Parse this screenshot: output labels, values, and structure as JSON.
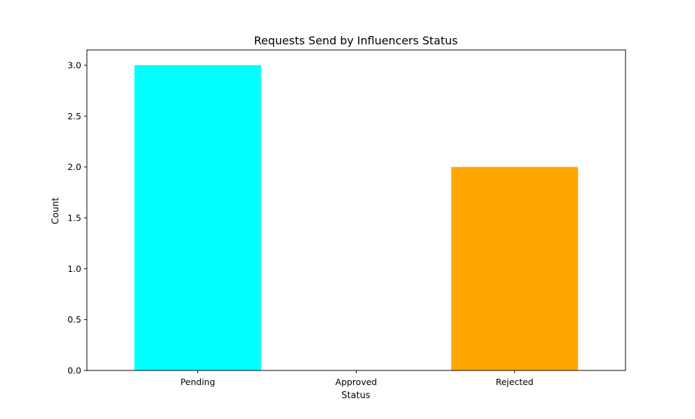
{
  "chart_data": {
    "type": "bar",
    "title": "Requests Send by Influencers Status",
    "xlabel": "Status",
    "ylabel": "Count",
    "categories": [
      "Pending",
      "Approved",
      "Rejected"
    ],
    "values": [
      3,
      0,
      2
    ],
    "colors": [
      "#00ffff",
      "#ffffff",
      "#ffa500"
    ],
    "ylim": [
      0,
      3.15
    ],
    "yticks": [
      0.0,
      0.5,
      1.0,
      1.5,
      2.0,
      2.5,
      3.0
    ],
    "ytick_labels": [
      "0.0",
      "0.5",
      "1.0",
      "1.5",
      "2.0",
      "2.5",
      "3.0"
    ],
    "grid": false,
    "legend": "none"
  }
}
